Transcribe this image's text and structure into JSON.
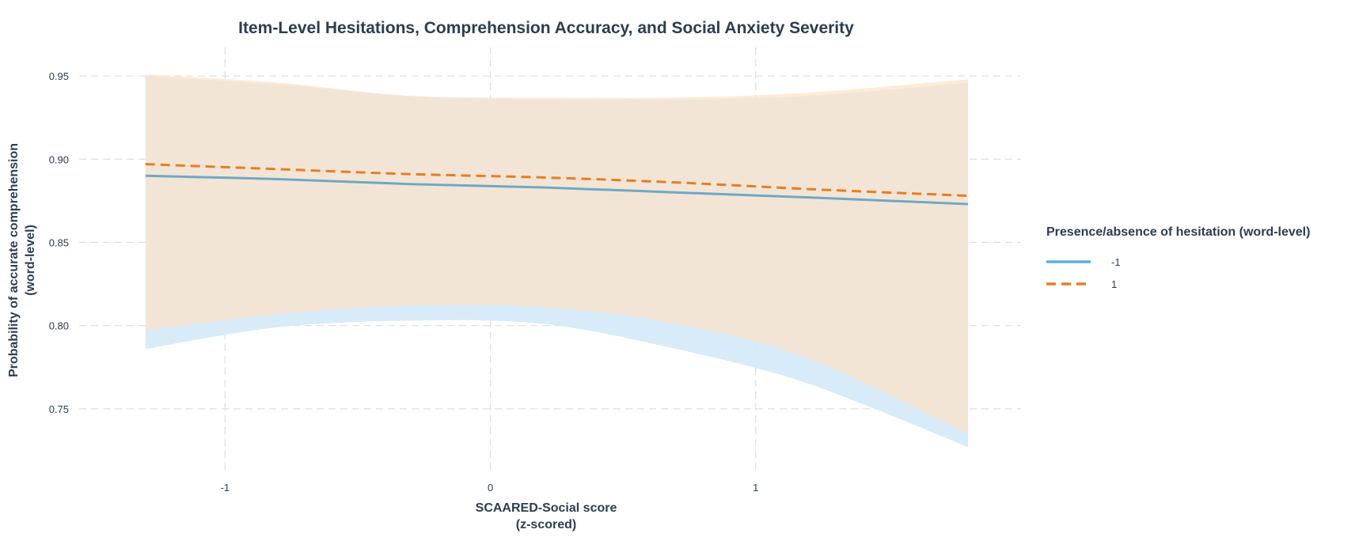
{
  "chart_data": {
    "type": "line",
    "title": "Item-Level Hesitations, Comprehension Accuracy, and Social Anxiety Severity",
    "xlabel": [
      "SCAARED-Social score",
      "(z-scored)"
    ],
    "ylabel": [
      "Probability of accurate comprehension",
      "(word-level)"
    ],
    "xlim": [
      -1.55,
      2.0
    ],
    "ylim": [
      0.72,
      0.96
    ],
    "x_ticks": [
      -1,
      0,
      1
    ],
    "x_tick_labels": [
      "-1",
      "0",
      "1"
    ],
    "y_ticks": [
      0.75,
      0.8,
      0.85,
      0.9,
      0.95
    ],
    "y_tick_labels": [
      "0.75",
      "0.80",
      "0.85",
      "0.90",
      "0.95"
    ],
    "grid": true,
    "legend": {
      "title": "Presence/absence of hesitation (word-level)",
      "position": "right"
    },
    "series": [
      {
        "name": "-1",
        "color": "#5dade2",
        "line_color": "#6fa8c4",
        "band_color": "#d6eaf8",
        "dash": "solid",
        "x": [
          -1.3,
          -0.8,
          -0.3,
          0.2,
          0.7,
          1.2,
          1.8
        ],
        "y": [
          0.89,
          0.888,
          0.885,
          0.883,
          0.88,
          0.877,
          0.873
        ],
        "lower": [
          0.786,
          0.799,
          0.803,
          0.801,
          0.786,
          0.765,
          0.727
        ],
        "upper": [
          0.95,
          0.945,
          0.938,
          0.936,
          0.936,
          0.938,
          0.946
        ]
      },
      {
        "name": "1",
        "color": "#e67e22",
        "line_color": "#e67e22",
        "band_color": "#fde2c8",
        "dash": "dashed",
        "x": [
          -1.3,
          -0.8,
          -0.3,
          0.2,
          0.7,
          1.2,
          1.8
        ],
        "y": [
          0.897,
          0.894,
          0.891,
          0.889,
          0.886,
          0.882,
          0.878
        ],
        "lower": [
          0.797,
          0.807,
          0.812,
          0.811,
          0.801,
          0.78,
          0.735
        ],
        "upper": [
          0.951,
          0.946,
          0.938,
          0.937,
          0.937,
          0.94,
          0.948
        ]
      }
    ]
  }
}
